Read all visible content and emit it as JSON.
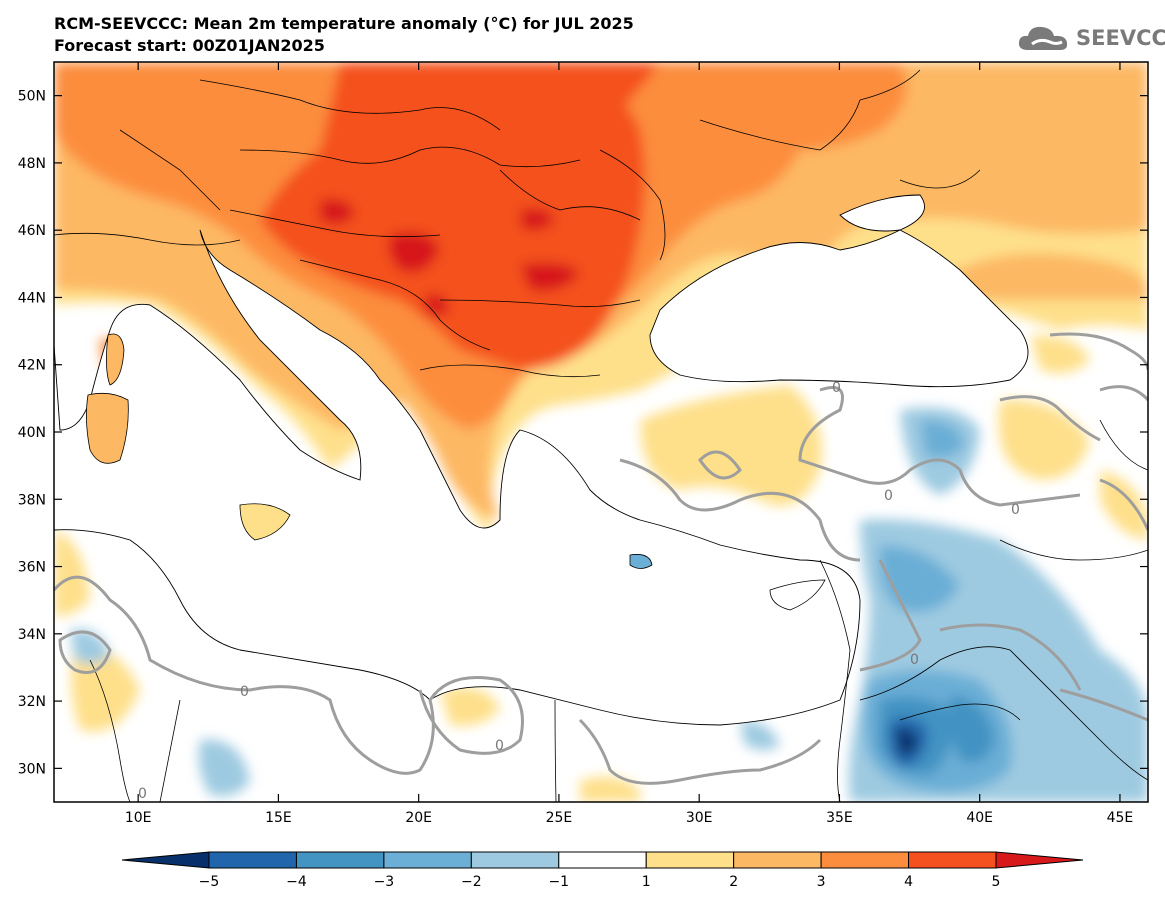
{
  "header": {
    "title": "RCM-SEEVCCC: Mean 2m temperature anomaly (°C) for JUL 2025",
    "subtitle": "Forecast start: 00Z01JAN2025"
  },
  "logo": {
    "text": "SEEVCCC",
    "icon": "cloud-logo-icon"
  },
  "map": {
    "lon_range": [
      7,
      46
    ],
    "lat_range": [
      29,
      51
    ],
    "lon_ticks": [
      "10E",
      "15E",
      "20E",
      "25E",
      "30E",
      "35E",
      "40E",
      "45E"
    ],
    "lon_tick_values": [
      10,
      15,
      20,
      25,
      30,
      35,
      40,
      45
    ],
    "lat_ticks": [
      "50N",
      "48N",
      "46N",
      "44N",
      "42N",
      "40N",
      "38N",
      "36N",
      "34N",
      "32N",
      "30N"
    ],
    "lat_tick_values": [
      50,
      48,
      46,
      44,
      42,
      40,
      38,
      36,
      34,
      32,
      30
    ],
    "contour_zero_label": "0"
  },
  "colorbar": {
    "labels": [
      "−5",
      "−4",
      "−3",
      "−2",
      "−1",
      "1",
      "2",
      "3",
      "4",
      "5"
    ],
    "colors": [
      "#08306b",
      "#2166ac",
      "#4393c3",
      "#6baed6",
      "#9ecae1",
      "#ffffff",
      "#fee08b",
      "#fdb863",
      "#fc8d3e",
      "#f4511e",
      "#d7191c"
    ]
  }
}
